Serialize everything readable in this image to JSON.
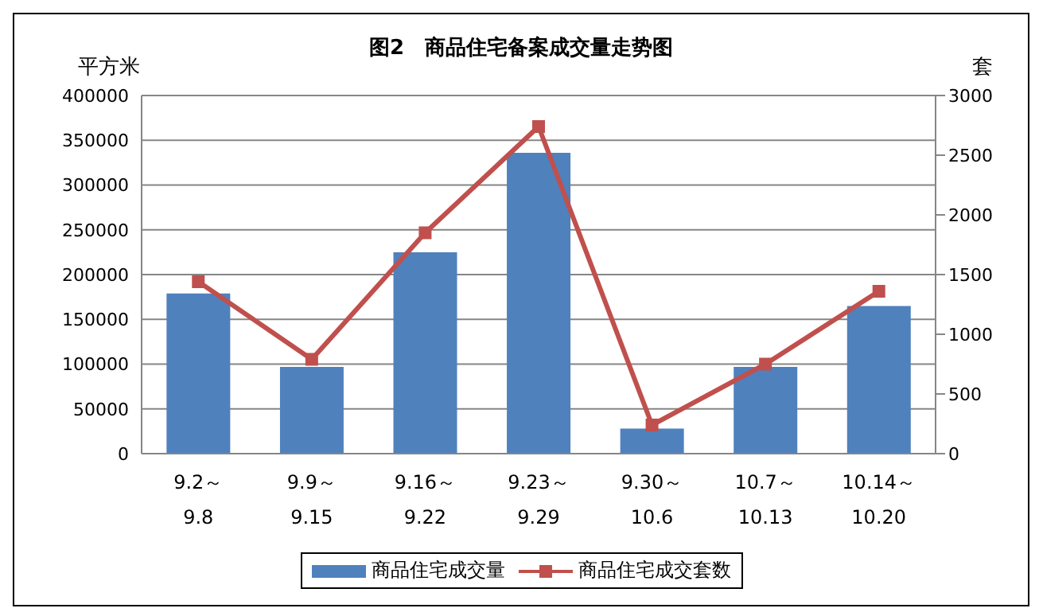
{
  "chart_data": {
    "type": "bar",
    "title": "图2　商品住宅备案成交量走势图",
    "ylabel": "平方米",
    "y2label": "套",
    "categories": [
      "9.2～9.8",
      "9.9～9.15",
      "9.16～9.22",
      "9.23～9.29",
      "9.30～10.6",
      "10.7～10.13",
      "10.14～10.20"
    ],
    "series": [
      {
        "name": "商品住宅成交量",
        "color": "#4f81bd",
        "values": [
          179000,
          97000,
          225000,
          336000,
          28000,
          97000,
          165000
        ]
      },
      {
        "name": "商品住宅成交套数",
        "type": "line",
        "axis": "y2",
        "color": "#c0504d",
        "marker": "square",
        "values": [
          1440,
          790,
          1850,
          2740,
          240,
          750,
          1360
        ]
      }
    ],
    "ylim": [
      0,
      400000
    ],
    "yticks": [
      0,
      50000,
      100000,
      150000,
      200000,
      250000,
      300000,
      350000,
      400000
    ],
    "y2lim": [
      0,
      3000
    ],
    "y2ticks": [
      0,
      500,
      1000,
      1500,
      2000,
      2500,
      3000
    ],
    "grid": "y",
    "legend": "bottom"
  }
}
